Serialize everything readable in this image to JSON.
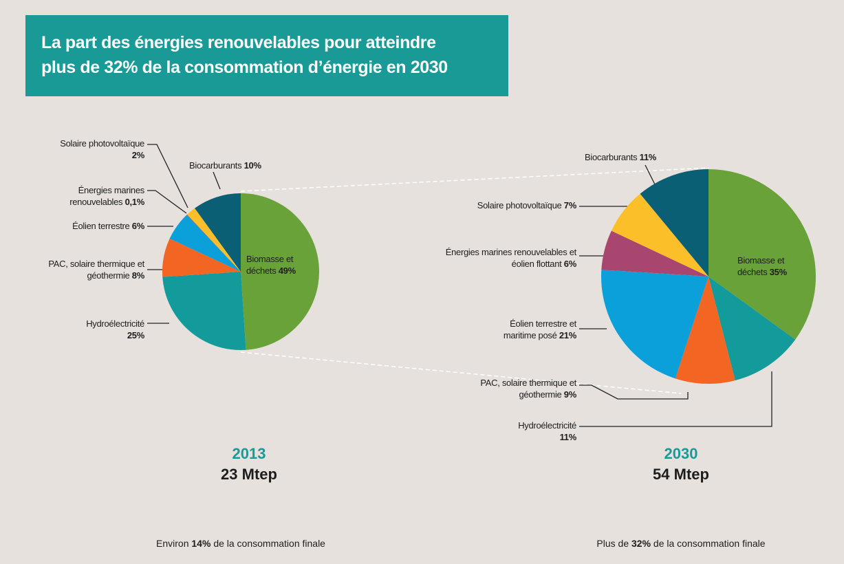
{
  "title": [
    "La part des énergies renouvelables pour atteindre",
    "plus de 32% de la consommation d’énergie en 2030"
  ],
  "chart_data": [
    {
      "type": "pie",
      "year": "2013",
      "total": "23 Mtep",
      "note": [
        "Environ",
        "14%",
        "de la consommation finale"
      ],
      "categories": [
        "Biomasse et déchets",
        "Hydroélectricité",
        "PAC, solaire thermique et géothermie",
        "Éolien terrestre",
        "Énergies marines renouvelables",
        "Solaire photovoltaïque",
        "Biocarburants"
      ],
      "values": [
        49,
        25,
        8,
        6,
        0.1,
        2,
        10
      ],
      "value_labels": [
        "49%",
        "25%",
        "8%",
        "6%",
        "0,1%",
        "2%",
        "10%"
      ],
      "colors": [
        "#6aa23a",
        "#129b9a",
        "#f26522",
        "#0ba0da",
        "#a8466f",
        "#fbbf2a",
        "#0b5f74"
      ]
    },
    {
      "type": "pie",
      "year": "2030",
      "total": "54 Mtep",
      "note": [
        "Plus de",
        "32%",
        "de la consommation finale"
      ],
      "categories": [
        "Biomasse et déchets",
        "Hydroélectricité",
        "PAC, solaire thermique et géothermie",
        "Éolien terrestre et maritime posé",
        "Énergies marines renouvelables et éolien flottant",
        "Solaire photovoltaïque",
        "Biocarburants"
      ],
      "values": [
        35,
        11,
        9,
        21,
        6,
        7,
        11
      ],
      "value_labels": [
        "35%",
        "11%",
        "9%",
        "21%",
        "6%",
        "7%",
        "11%"
      ],
      "colors": [
        "#6aa23a",
        "#129b9a",
        "#f26522",
        "#0ba0da",
        "#a8466f",
        "#fbbf2a",
        "#0b5f74"
      ]
    }
  ]
}
